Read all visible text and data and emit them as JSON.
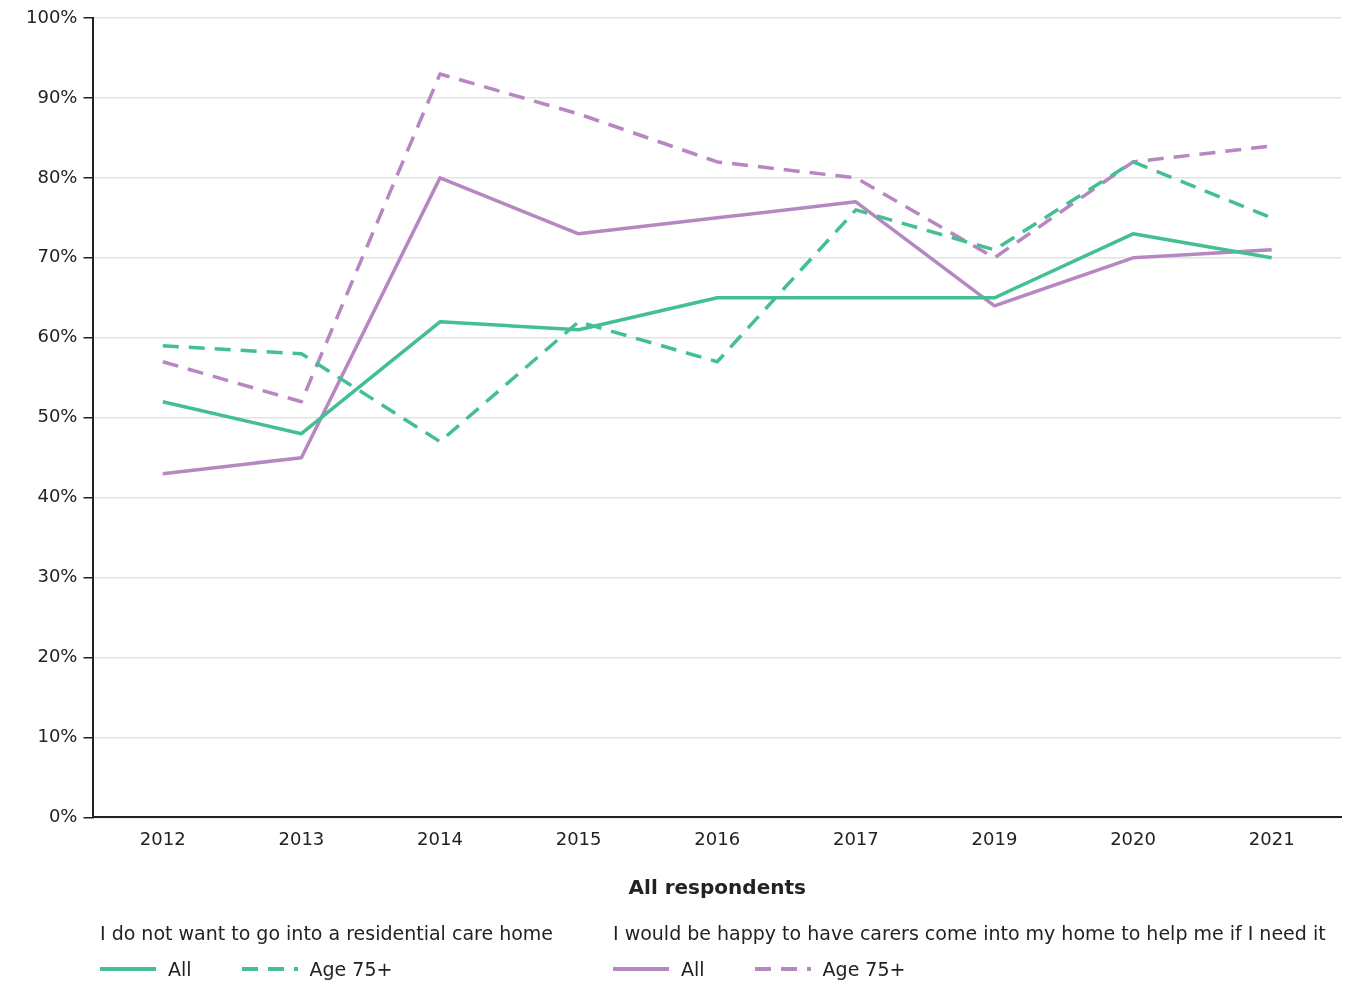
{
  "chart_data": {
    "type": "line",
    "xlabel": "All respondents",
    "categories": [
      "2012",
      "2013",
      "2014",
      "2015",
      "2016",
      "2017",
      "2019",
      "2020",
      "2021"
    ],
    "series": [
      {
        "name": "All",
        "color": "#43bf93",
        "line_style": "solid",
        "values": [
          52,
          48,
          62,
          61,
          65,
          65,
          65,
          73,
          70
        ]
      },
      {
        "name": "Age 75+",
        "color": "#43bf93",
        "line_style": "dashed",
        "values": [
          59,
          58,
          47,
          62,
          57,
          76,
          71,
          82,
          75
        ]
      },
      {
        "name": "All",
        "color": "#b687c1",
        "line_style": "solid",
        "values": [
          43,
          45,
          80,
          73,
          75,
          77,
          64,
          70,
          71
        ]
      },
      {
        "name": "Age 75+",
        "color": "#b687c1",
        "line_style": "dashed",
        "values": [
          57,
          52,
          93,
          88,
          82,
          80,
          70,
          82,
          84
        ]
      }
    ],
    "ylim": [
      0,
      100
    ],
    "yticks": [
      {
        "value": 0,
        "label": "0%"
      },
      {
        "value": 10,
        "label": "10%"
      },
      {
        "value": 20,
        "label": "20%"
      },
      {
        "value": 30,
        "label": "30%"
      },
      {
        "value": 40,
        "label": "40%"
      },
      {
        "value": 50,
        "label": "50%"
      },
      {
        "value": 60,
        "label": "60%"
      },
      {
        "value": 70,
        "label": "70%"
      },
      {
        "value": 80,
        "label": "80%"
      },
      {
        "value": 90,
        "label": "90%"
      },
      {
        "value": 100,
        "label": "100%"
      }
    ],
    "grid": "y",
    "legend": "bottom",
    "marker": "none",
    "annotations": [
      "I do not want to go into a residential care home",
      "I would be happy to have carers come into my home to help me if I need it"
    ]
  }
}
